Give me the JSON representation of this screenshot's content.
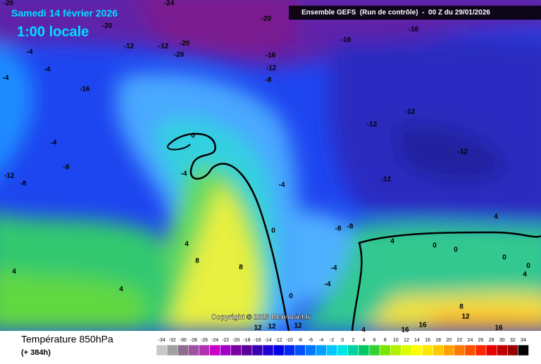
{
  "header": {
    "date": "Samedi 14 février 2026",
    "time": "1:00 locale",
    "model": "Ensemble GEFS  (Run de contrôle)  -  00 Z du 29/01/2026"
  },
  "copyright": "Copyright © 2026 Meteociel.fr",
  "footer": {
    "title": "Température 850hPa",
    "lead": "(+ 384h)"
  },
  "legend": {
    "ticks": [
      -34,
      -32,
      -30,
      -28,
      -26,
      -24,
      -22,
      -20,
      -18,
      -16,
      -14,
      -12,
      -10,
      -8,
      -6,
      -4,
      -2,
      0,
      2,
      4,
      6,
      8,
      10,
      12,
      14,
      16,
      18,
      20,
      22,
      24,
      26,
      28,
      30,
      32,
      34
    ],
    "colors": [
      "#c8c8c8",
      "#a0a0a0",
      "#8c6e8c",
      "#a050a0",
      "#b030b0",
      "#c800c8",
      "#a000c8",
      "#7800a0",
      "#5a0096",
      "#3c00b4",
      "#1e00d2",
      "#0000e6",
      "#0028f0",
      "#0050ff",
      "#0078ff",
      "#00a0ff",
      "#00c8ff",
      "#00e6e6",
      "#00d2a0",
      "#00c864",
      "#32d232",
      "#78e600",
      "#b4f000",
      "#dcff00",
      "#ffff00",
      "#ffe600",
      "#ffc800",
      "#ffa000",
      "#ff7800",
      "#ff5000",
      "#ff2800",
      "#e60000",
      "#be0000",
      "#960000",
      "#000000"
    ]
  },
  "contour_labels": [
    -20,
    -24,
    -20,
    -20,
    -16,
    -16,
    -12,
    -12,
    -20,
    -20,
    -16,
    -12,
    -8,
    -4,
    -4,
    -4,
    -16,
    -12,
    -12,
    -12,
    -12,
    -4,
    -8,
    -12,
    -8,
    0,
    -4,
    -4,
    0,
    -8,
    -8,
    4,
    8,
    8,
    4,
    4,
    4,
    4,
    0,
    0,
    0,
    0,
    4,
    -4,
    -4,
    0,
    8,
    12,
    16,
    16,
    12,
    12,
    12,
    4,
    16
  ]
}
